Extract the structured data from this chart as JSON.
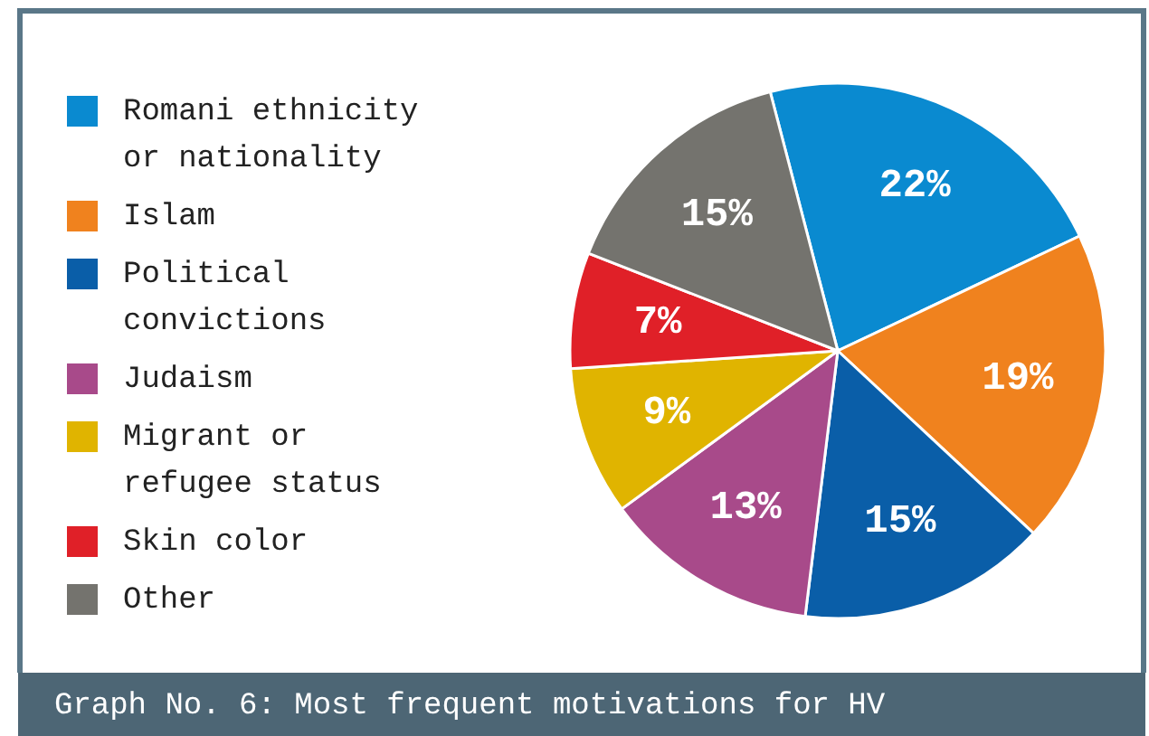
{
  "chart_data": {
    "type": "pie",
    "title": "Graph No. 6: Most frequent motivations for HV",
    "categories": [
      "Romani ethnicity or nationality",
      "Islam",
      "Political convictions",
      "Judaism",
      "Migrant or refugee status",
      "Skin color",
      "Other"
    ],
    "values": [
      22,
      19,
      15,
      13,
      9,
      7,
      15
    ],
    "value_labels": [
      "22%",
      "19%",
      "15%",
      "13%",
      "9%",
      "7%",
      "15%"
    ],
    "colors": [
      "#0a8ad0",
      "#f0821e",
      "#0a5ea8",
      "#a84a8a",
      "#e0b400",
      "#e02028",
      "#74736e"
    ],
    "legend": "left"
  }
}
